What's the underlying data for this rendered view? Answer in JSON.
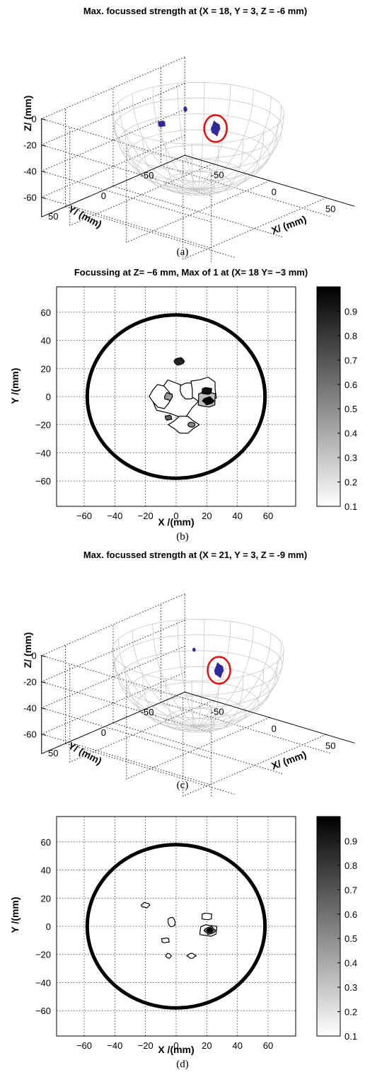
{
  "chart_data": [
    {
      "panel_label": "(a)",
      "type": "scatter",
      "title": "Max. focussed strength at (X = 18, Y = 3, Z = -6 mm)",
      "xlabel": "X/ (mm)",
      "ylabel": "Y/ (mm)",
      "zlabel": "Z/ (mm)",
      "xlim": [
        -75,
        75
      ],
      "ylim": [
        -75,
        75
      ],
      "zlim": [
        -75,
        0
      ],
      "x_ticks": [
        "-50",
        "0",
        "50"
      ],
      "y_ticks": [
        "50",
        "0",
        "-50"
      ],
      "z_ticks": [
        "0",
        "-20",
        "-40",
        "-60"
      ],
      "grid": true,
      "max_point": {
        "x": 18,
        "y": 3,
        "z": -6
      },
      "colors": {
        "mesh": "#c8c8c8",
        "blob": "#2a2a9a",
        "marker": "#e01010"
      }
    },
    {
      "panel_label": "(b)",
      "type": "heatmap",
      "title": "Focussing at Z= −6 mm, Max of 1 at (X= 18 Y= −3 mm)",
      "xlabel": "X /(mm)",
      "ylabel": "Y /(mm)",
      "xlim": [
        -78,
        78
      ],
      "ylim": [
        -78,
        78
      ],
      "x_ticks": [
        -60,
        -40,
        -20,
        0,
        20,
        40,
        60
      ],
      "y_ticks": [
        60,
        40,
        20,
        0,
        -20,
        -40,
        -60
      ],
      "grid": true,
      "aperture_radius": 58,
      "colorbar": {
        "min": 0.1,
        "max": 1,
        "ticks": [
          "0.9",
          "0.8",
          "0.7",
          "0.6",
          "0.5",
          "0.4",
          "0.3",
          "0.2",
          "0.1"
        ]
      },
      "max_point": {
        "x": 18,
        "y": -3,
        "value": 1
      }
    },
    {
      "panel_label": "(c)",
      "type": "scatter",
      "title": "Max. focussed strength at (X = 21, Y = 3, Z = -9 mm)",
      "xlabel": "X/ (mm)",
      "ylabel": "Y/ (mm)",
      "zlabel": "Z/ (mm)",
      "xlim": [
        -75,
        75
      ],
      "ylim": [
        -75,
        75
      ],
      "zlim": [
        -75,
        0
      ],
      "x_ticks": [
        "-50",
        "0",
        "50"
      ],
      "y_ticks": [
        "50",
        "0",
        "-50"
      ],
      "z_ticks": [
        "0",
        "-20",
        "-40",
        "-60"
      ],
      "grid": true,
      "max_point": {
        "x": 21,
        "y": 3,
        "z": -9
      },
      "colors": {
        "mesh": "#c8c8c8",
        "blob": "#2a2a9a",
        "marker": "#e01010"
      }
    },
    {
      "panel_label": "(d)",
      "type": "heatmap",
      "title": "",
      "xlabel": "X /(mm)",
      "ylabel": "Y /(mm)",
      "xlim": [
        -78,
        78
      ],
      "ylim": [
        -78,
        78
      ],
      "x_ticks": [
        -60,
        -40,
        -20,
        0,
        20,
        40,
        60
      ],
      "y_ticks": [
        60,
        40,
        20,
        0,
        -20,
        -40,
        -60
      ],
      "grid": true,
      "aperture_radius": 58,
      "colorbar": {
        "min": 0.1,
        "max": 1,
        "ticks": [
          "0.9",
          "0.8",
          "0.7",
          "0.6",
          "0.5",
          "0.4",
          "0.3",
          "0.2",
          "0.1"
        ]
      },
      "max_point": {
        "x": 21,
        "y": -3,
        "value": 1
      }
    }
  ]
}
